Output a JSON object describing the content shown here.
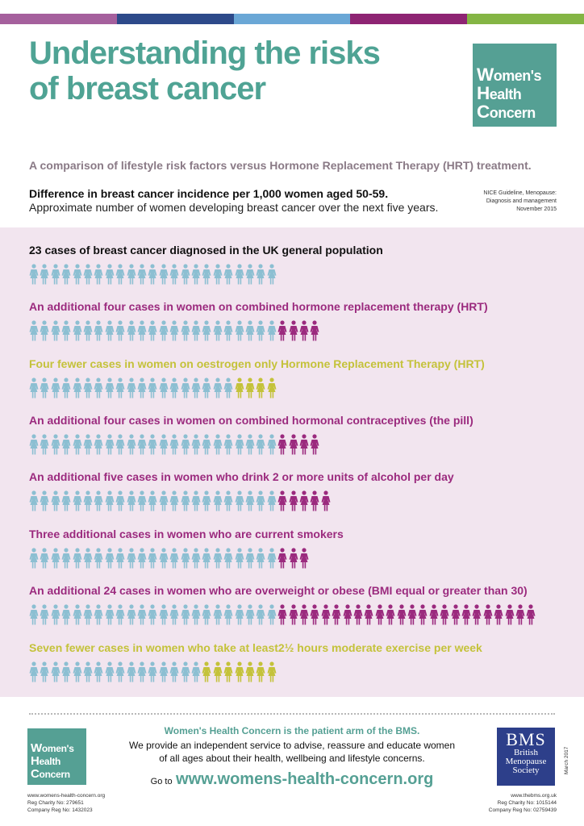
{
  "colors": {
    "teal": "#55a094",
    "blue_person": "#8cbfd2",
    "purple": "#9b2a7e",
    "olive": "#c4c23a",
    "panel_bg": "#f2e5ef",
    "bar": [
      "#a5609d",
      "#2d4a8a",
      "#6aa7d6",
      "#8e2473",
      "#84b544"
    ]
  },
  "title": "Understanding the risks of breast cancer",
  "logo": {
    "line1_cap": "W",
    "line1_rest": "omen's",
    "line2_cap": "H",
    "line2_rest": "ealth",
    "line3_cap": "C",
    "line3_rest": "oncern"
  },
  "subtitle": "A comparison of lifestyle risk factors versus Hormone Replacement Therapy (HRT) treatment.",
  "diff_title": "Difference in breast cancer incidence per 1,000 women aged 50-59.",
  "diff_sub": "Approximate number of women developing breast cancer over the next five years.",
  "source": {
    "line1": "NICE Guideline, Menopause:",
    "line2": "Diagnosis and management",
    "line3": "November 2015"
  },
  "rows": [
    {
      "title": "23 cases of breast cancer diagnosed in the UK general population",
      "title_color": "#111111",
      "base": 23,
      "extra": 0,
      "extra_color": ""
    },
    {
      "title": "An additional four cases in women on combined hormone replacement therapy (HRT)",
      "title_color": "#9b2a7e",
      "base": 23,
      "extra": 4,
      "extra_color": "#9b2a7e"
    },
    {
      "title": "Four fewer  cases in women on oestrogen only Hormone Replacement Therapy (HRT)",
      "title_color": "#c4c23a",
      "base": 19,
      "extra": 4,
      "extra_color": "#c4c23a"
    },
    {
      "title": "An additional four cases in women on combined hormonal contraceptives (the pill)",
      "title_color": "#9b2a7e",
      "base": 23,
      "extra": 4,
      "extra_color": "#9b2a7e"
    },
    {
      "title": "An additional five cases in women who drink 2 or more units of alcohol per day",
      "title_color": "#9b2a7e",
      "base": 23,
      "extra": 5,
      "extra_color": "#9b2a7e"
    },
    {
      "title": "Three additional cases in women who are current smokers",
      "title_color": "#9b2a7e",
      "base": 23,
      "extra": 3,
      "extra_color": "#9b2a7e"
    },
    {
      "title": "An additional 24 cases in women who are overweight or obese (BMI equal or greater than 30)",
      "title_color": "#9b2a7e",
      "base": 23,
      "extra": 24,
      "extra_color": "#9b2a7e"
    },
    {
      "title": "Seven fewer cases in women who take at least2½ hours moderate exercise per week",
      "title_color": "#c4c23a",
      "base": 16,
      "extra": 7,
      "extra_color": "#c4c23a"
    }
  ],
  "footer": {
    "tagline": "Women's Health Concern is the patient arm of the BMS.",
    "body1": "We provide an independent service to advise, reassure and educate women",
    "body2": "of all ages about their health, wellbeing and lifestyle concerns.",
    "go_to": "Go to",
    "url": "www.womens-health-concern.org",
    "left_info": [
      "www.womens-health-concern.org",
      "Reg Charity No: 279651",
      "Company Reg No: 1432023"
    ],
    "right_info": [
      "www.thebms.org.uk",
      "Reg Charity No: 1015144",
      "Company Reg No: 02759439"
    ],
    "bms_abbr": "BMS",
    "bms_name": [
      "British",
      "Menopause",
      "Society"
    ],
    "date": "March 2017"
  }
}
